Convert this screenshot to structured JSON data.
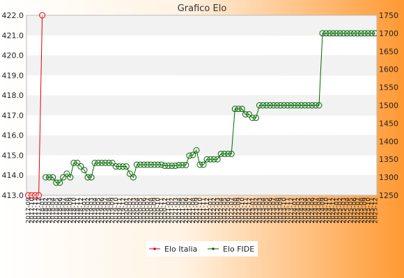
{
  "chart_data": {
    "type": "line",
    "title": "Grafico Elo",
    "left_axis": {
      "ylim": [
        413.0,
        422.0
      ],
      "ticks": [
        "413.0",
        "414.0",
        "415.0",
        "416.0",
        "417.0",
        "418.0",
        "419.0",
        "420.0",
        "421.0",
        "422.0"
      ]
    },
    "right_axis": {
      "ylim": [
        1250,
        1750
      ],
      "ticks": [
        "1250",
        "1300",
        "1350",
        "1400",
        "1450",
        "1500",
        "1550",
        "1600",
        "1650",
        "1700",
        "1750"
      ]
    },
    "grid": "horizontal bands",
    "legend_position": "bottom",
    "colors": {
      "elo_italia": "#dd0000",
      "elo_fide": "#006600",
      "background_gradient": "#ff9933"
    },
    "x_tick_labels": [
      "2017-09",
      "2017-10",
      "2017-11",
      "2017-12",
      "2018-01",
      "2018-02",
      "2018-03",
      "2018-04",
      "2018-05",
      "2018-06",
      "2018-07",
      "2018-08",
      "2018-09",
      "2018-10",
      "2018-11",
      "2018-12",
      "2019-01",
      "2019-02",
      "2019-03",
      "2019-04",
      "2019-05",
      "2019-06",
      "2019-07",
      "2019-08",
      "2019-09",
      "2019-10",
      "2019-11",
      "2019-12",
      "2020-01",
      "2020-02",
      "2020-03",
      "2020-04",
      "2020-05",
      "2020-06",
      "2020-07",
      "2020-08",
      "2020-09",
      "2020-10",
      "2020-11",
      "2020-12",
      "2021-01",
      "2021-02",
      "2021-03",
      "2021-04",
      "2021-05",
      "2021-06",
      "2021-07",
      "2021-08",
      "2021-09",
      "2021-10",
      "2021-11",
      "2021-12",
      "2022-01",
      "2022-02",
      "2022-03",
      "2022-04",
      "2022-05",
      "2022-06",
      "2022-07",
      "2022-08",
      "2022-09",
      "2022-10",
      "2022-11",
      "2022-12",
      "2023-01",
      "2023-02",
      "2023-03",
      "2023-04",
      "2023-05",
      "2023-06",
      "2023-07",
      "2023-08",
      "2023-09",
      "2023-10",
      "2023-11",
      "2023-12",
      "2024-01",
      "2024-02",
      "2024-03",
      "2024-04",
      "2024-05",
      "2024-06",
      "2024-07",
      "2024-08",
      "2024-09",
      "2024-10",
      "2024-11",
      "2024-12",
      "2025-01",
      "2025-02",
      "2025-03",
      "2025-04",
      "2025-05",
      "2025-06",
      "2025-07",
      "2025-08",
      "2025-09",
      "2025-10",
      "2025-11",
      "2025-12"
    ],
    "series": [
      {
        "name": "Elo Italia",
        "axis": "left",
        "values": [
          413.0,
          413.0,
          413.0,
          413.0,
          422.0
        ]
      },
      {
        "name": "Elo FIDE",
        "axis": "right",
        "start_index": 5,
        "values": [
          1300,
          1300,
          1300,
          1285,
          1285,
          1300,
          1310,
          1300,
          1340,
          1340,
          1330,
          1320,
          1300,
          1300,
          1340,
          1340,
          1340,
          1340,
          1340,
          1340,
          1330,
          1330,
          1330,
          1330,
          1310,
          1300,
          1335,
          1335,
          1335,
          1335,
          1335,
          1335,
          1335,
          1335,
          1332,
          1332,
          1332,
          1332,
          1334,
          1334,
          1334,
          1360,
          1362,
          1375,
          1335,
          1335,
          1350,
          1350,
          1350,
          1350,
          1365,
          1365,
          1365,
          1365,
          1490,
          1490,
          1490,
          1475,
          1475,
          1465,
          1465,
          1500,
          1500,
          1500,
          1500,
          1500,
          1500,
          1500,
          1500,
          1500,
          1500,
          1500,
          1500,
          1500,
          1500,
          1500,
          1500,
          1500,
          1500,
          1700,
          1700,
          1700,
          1700,
          1700,
          1700,
          1700,
          1700,
          1700,
          1700,
          1700,
          1700,
          1700,
          1700,
          1700,
          1700
        ]
      }
    ]
  }
}
